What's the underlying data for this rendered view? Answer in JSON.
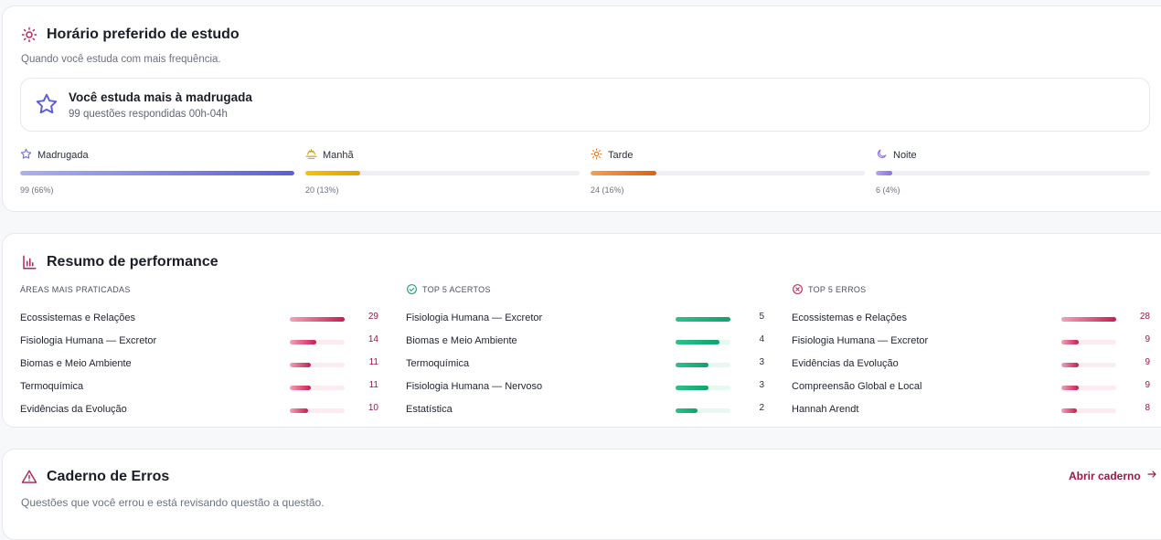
{
  "schedule": {
    "title": "Horário preferido de estudo",
    "subtitle": "Quando você estuda com mais frequência.",
    "highlight_title": "Você estuda mais à madrugada",
    "highlight_sub": "99 questões respondidas 00h-04h",
    "slots": [
      {
        "label": "Madrugada",
        "value": "99 (66%)",
        "fraction": 1.0,
        "icon": "star-icon",
        "color": "#6b6fe0"
      },
      {
        "label": "Manhã",
        "value": "20 (13%)",
        "fraction": 0.2,
        "icon": "sunrise-icon",
        "color": "#e0a800"
      },
      {
        "label": "Tarde",
        "value": "24 (16%)",
        "fraction": 0.24,
        "icon": "sun-icon",
        "color": "#e0701a"
      },
      {
        "label": "Noite",
        "value": "6 (4%)",
        "fraction": 0.06,
        "icon": "moon-icon",
        "color": "#8b6fe0"
      }
    ]
  },
  "performance": {
    "title": "Resumo de performance",
    "columns": [
      {
        "heading": "ÁREAS MAIS PRATICADAS",
        "style": "pink",
        "max": 29,
        "rows": [
          {
            "label": "Ecossistemas e Relações",
            "value": 29
          },
          {
            "label": "Fisiologia Humana — Excretor",
            "value": 14
          },
          {
            "label": "Biomas e Meio Ambiente",
            "value": 11
          },
          {
            "label": "Termoquímica",
            "value": 11
          },
          {
            "label": "Evidências da Evolução",
            "value": 10
          }
        ]
      },
      {
        "heading": "TOP 5 ACERTOS",
        "style": "green",
        "icon": "check-circle-icon",
        "max": 5,
        "rows": [
          {
            "label": "Fisiologia Humana — Excretor",
            "value": 5
          },
          {
            "label": "Biomas e Meio Ambiente",
            "value": 4
          },
          {
            "label": "Termoquímica",
            "value": 3
          },
          {
            "label": "Fisiologia Humana — Nervoso",
            "value": 3
          },
          {
            "label": "Estatística",
            "value": 2
          }
        ]
      },
      {
        "heading": "TOP 5 ERROS",
        "style": "pink",
        "icon": "x-circle-icon",
        "max": 28,
        "rows": [
          {
            "label": "Ecossistemas e Relações",
            "value": 28
          },
          {
            "label": "Fisiologia Humana — Excretor",
            "value": 9
          },
          {
            "label": "Evidências da Evolução",
            "value": 9
          },
          {
            "label": "Compreensão Global e Local",
            "value": 9
          },
          {
            "label": "Hannah Arendt",
            "value": 8
          }
        ]
      }
    ]
  },
  "errors": {
    "title": "Caderno de Erros",
    "subtitle": "Questões que você errou e está revisando questão a questão.",
    "link_label": "Abrir caderno"
  },
  "colors": {
    "accent": "#9e1646",
    "primary_bar": "#6b6fe0"
  }
}
